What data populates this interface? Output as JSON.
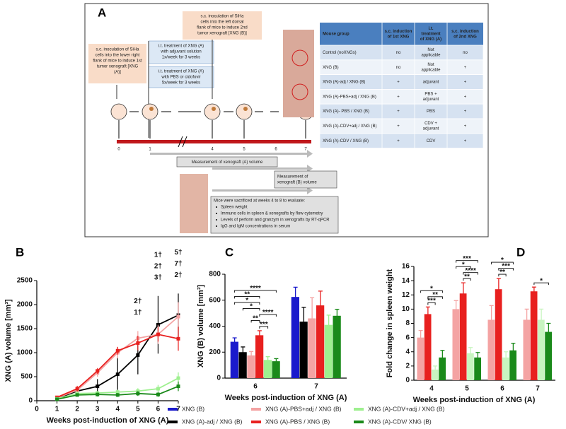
{
  "figure_a": {
    "label": "A",
    "sc_first": [
      "s.c. inoculation of SiHa",
      "cells  into the lower right",
      "flank of mice to induce 1st",
      "tumor xenograft [XNG",
      "(A)]"
    ],
    "sc_second": [
      "s.c. inoculation of SiHa",
      "cells into the left dorsal",
      "flank of mice to induce 2nd",
      "tumor xenograft [XNG (B)]"
    ],
    "it_adjuvant": [
      "i.t. treatment of XNG (A)",
      "with adjuvant solution",
      "1x/week for 3 weeks"
    ],
    "it_pbs_cdv": [
      "i.t. treatment of XNG (A)",
      "with PBS or cidofovir",
      "5x/week for 3 weeks"
    ],
    "timeline_weeks": [
      0,
      1,
      4,
      5,
      6,
      7
    ],
    "measure_a": "Measurement of xenograft (A) volume",
    "measure_b": [
      "Measurement of",
      "xenograft (B) volume"
    ],
    "sacrifice": {
      "title": "Mice were sacrificed at weeks 4 to 8 to evaluate:",
      "items": [
        "Spleen weight",
        "Immune cells in spleen & xenografts by flow cytometry",
        "Levels of perforin and granzym in xenografts by RT-qPCR",
        "IgG and IgM concentrations in serum"
      ]
    },
    "table": {
      "header": [
        [
          "Mouse group"
        ],
        [
          "s.c. induction",
          "of 1st XNG"
        ],
        [
          "i.t.",
          "treatment",
          "of XNG (A)"
        ],
        [
          "s.c. induction",
          "of 2nd XNG"
        ]
      ],
      "rows": [
        [
          [
            "Control (noXNGs)"
          ],
          [
            "no"
          ],
          [
            "Not",
            "applicable"
          ],
          [
            "no"
          ]
        ],
        [
          [
            "XNG (B)"
          ],
          [
            "no"
          ],
          [
            "Not",
            "applicable"
          ],
          [
            "+"
          ]
        ],
        [
          [
            "XNG (A)-adj / XNG (B)"
          ],
          [
            "+"
          ],
          [
            "adjuvant"
          ],
          [
            "+"
          ]
        ],
        [
          [
            "XNG (A)-PBS+adj / XNG (B)"
          ],
          [
            "+"
          ],
          [
            "PBS +",
            "adjuvant"
          ],
          [
            "+"
          ]
        ],
        [
          [
            "XNG (A)- PBS / XNG (B)"
          ],
          [
            "+"
          ],
          [
            "PBS"
          ],
          [
            "+"
          ]
        ],
        [
          [
            "XNG (A)-CDV+adj / XNG (B)"
          ],
          [
            "+"
          ],
          [
            "CDV +",
            "adjuvant"
          ],
          [
            "+"
          ]
        ],
        [
          [
            "XNG (A)-CDV / XNG (B)"
          ],
          [
            "+"
          ],
          [
            "CDV"
          ],
          [
            "+"
          ]
        ]
      ]
    }
  },
  "chart_data": [
    {
      "type": "line",
      "panel": "B",
      "x_label": "Weeks post-induction of XNG (A)",
      "y_label": "XNG (A) volume [mm³]",
      "x": [
        1,
        2,
        3,
        4,
        5,
        6,
        7
      ],
      "xlim": [
        0,
        7
      ],
      "xticks": [
        0,
        1,
        2,
        3,
        4,
        5,
        6,
        7
      ],
      "ylim": [
        0,
        2500
      ],
      "yticks": [
        0,
        500,
        1000,
        1500,
        2000,
        2500
      ],
      "series": [
        {
          "color": "#000000",
          "values": [
            50,
            200,
            300,
            550,
            950,
            1580,
            1780
          ],
          "errors": [
            30,
            80,
            150,
            350,
            400,
            600,
            450
          ]
        },
        {
          "color": "#f4a3a3",
          "values": [
            60,
            220,
            580,
            1000,
            1300,
            1380,
            1750
          ],
          "errors": [
            30,
            60,
            80,
            120,
            150,
            200,
            300
          ]
        },
        {
          "color": "#e8201f",
          "values": [
            70,
            250,
            620,
            1040,
            1200,
            1380,
            1290
          ],
          "errors": [
            30,
            60,
            60,
            80,
            150,
            150,
            250
          ]
        },
        {
          "color": "#9ef08f",
          "values": [
            40,
            150,
            160,
            180,
            200,
            250,
            470
          ],
          "errors": [
            20,
            40,
            40,
            50,
            60,
            80,
            120
          ]
        },
        {
          "color": "#1a8a1a",
          "values": [
            30,
            120,
            130,
            120,
            150,
            130,
            300
          ],
          "errors": [
            20,
            30,
            40,
            40,
            50,
            50,
            100
          ]
        }
      ],
      "annotations": [
        {
          "text": "2†",
          "x": 5,
          "color": "#f08080"
        },
        {
          "text": "1†",
          "x": 5,
          "color": "#e8201f"
        },
        {
          "text": "1†",
          "x": 6,
          "color": "#000000"
        },
        {
          "text": "2†",
          "x": 6,
          "color": "#f08080"
        },
        {
          "text": "3†",
          "x": 6,
          "color": "#e8201f"
        },
        {
          "text": "5†",
          "x": 7,
          "color": "#000000"
        },
        {
          "text": "7†",
          "x": 7,
          "color": "#f08080"
        },
        {
          "text": "2†",
          "x": 7,
          "color": "#e8201f"
        }
      ]
    },
    {
      "type": "bar",
      "panel": "C",
      "x_label": "Weeks post-induction of XNG (A)",
      "y_label": "XNG (B) volume [mm³]",
      "categories": [
        "6",
        "7"
      ],
      "ylim": [
        0,
        800
      ],
      "yticks": [
        0,
        200,
        400,
        600,
        800
      ],
      "series": [
        {
          "name": "XNG (B)",
          "color": "#1a1acc",
          "values": [
            280,
            625
          ],
          "errors": [
            30,
            75
          ]
        },
        {
          "name": "XNG (A)-adj / XNG (B)",
          "color": "#000000",
          "values": [
            200,
            435
          ],
          "errors": [
            40,
            110
          ]
        },
        {
          "name": "XNG (A)-PBS+adj / XNG (B)",
          "color": "#f4a3a3",
          "values": [
            175,
            460
          ],
          "errors": [
            30,
            160
          ]
        },
        {
          "name": "XNG (A)-PBS / XNG (B)",
          "color": "#e8201f",
          "values": [
            330,
            560
          ],
          "errors": [
            35,
            110
          ]
        },
        {
          "name": "XNG (A)-CDV+adj / XNG (B)",
          "color": "#9ef08f",
          "values": [
            140,
            410
          ],
          "errors": [
            25,
            75
          ]
        },
        {
          "name": "XNG (A)-CDV/ XNG (B)",
          "color": "#1a8a1a",
          "values": [
            130,
            480
          ],
          "errors": [
            20,
            50
          ]
        }
      ],
      "significance": [
        "****",
        "**",
        "*",
        "*",
        "****",
        "**",
        "***"
      ]
    },
    {
      "type": "bar",
      "panel": "D",
      "x_label": "Weeks post-induction of XNG (A)",
      "y_label": "Fold change in spleen weight",
      "categories": [
        "4",
        "5",
        "6",
        "7"
      ],
      "ylim": [
        0,
        16
      ],
      "yticks": [
        0,
        2,
        4,
        6,
        8,
        10,
        12,
        14,
        16
      ],
      "series": [
        {
          "color": "#f4a3a3",
          "values": [
            6,
            10,
            8.5,
            8.5
          ],
          "errors": [
            1,
            1.2,
            2,
            1.5
          ]
        },
        {
          "color": "#e8201f",
          "values": [
            9.3,
            12.2,
            12.8,
            12.5
          ],
          "errors": [
            1,
            1.5,
            1.5,
            0.6
          ]
        },
        {
          "color": "#c8f5c0",
          "values": [
            1.5,
            3.8,
            3.2,
            8.5
          ],
          "errors": [
            0.5,
            0.8,
            0.8,
            1.5
          ]
        },
        {
          "color": "#1a8a1a",
          "values": [
            3.2,
            3.2,
            4.2,
            6.8
          ],
          "errors": [
            1,
            0.7,
            1,
            1.2
          ]
        }
      ],
      "significance": [
        "*",
        "**",
        "***",
        "***",
        "*",
        "****",
        "**",
        "*",
        "***",
        "**",
        "*"
      ]
    }
  ]
}
